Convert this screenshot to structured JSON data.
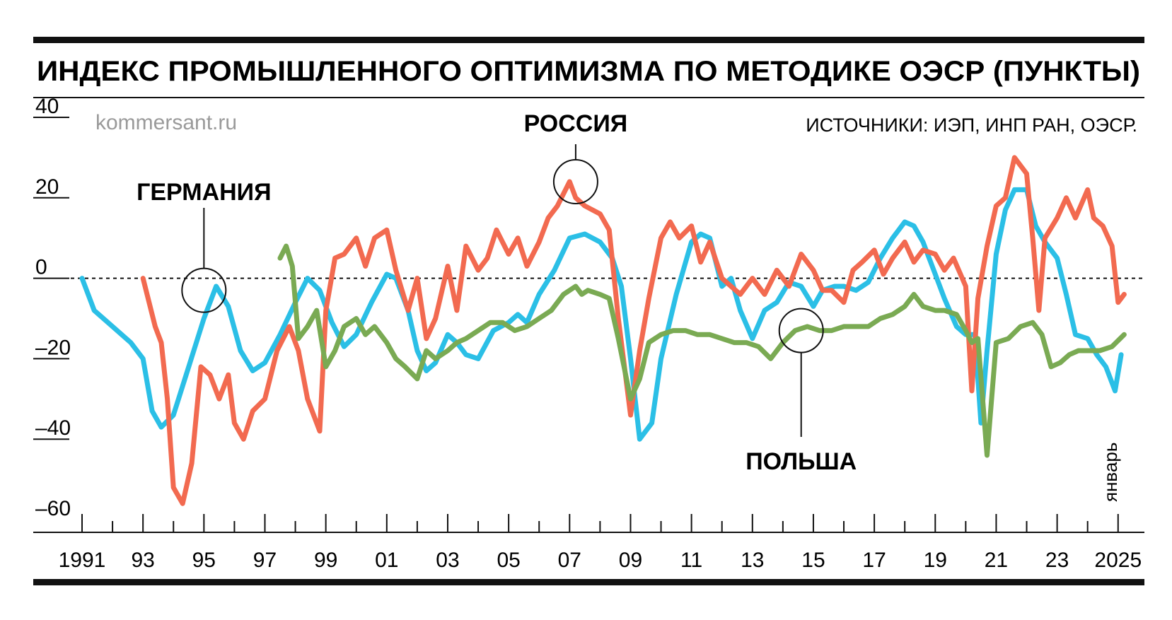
{
  "title": "ИНДЕКС ПРОМЫШЛЕННОГО ОПТИМИЗМА ПО МЕТОДИКЕ ОЭСР (ПУНКТЫ)",
  "credit": "kommersant.ru",
  "source": "ИСТОЧНИКИ: ИЭП, ИНП РАН, ОЭСР.",
  "note": "январь",
  "colors": {
    "germany": "#2bbfe6",
    "russia": "#f26a50",
    "poland": "#7aaa53",
    "ink": "#111111"
  },
  "chart_data": {
    "type": "line",
    "xlim": [
      1991,
      2025.4
    ],
    "ylim": [
      -60,
      40
    ],
    "y_ticks": [
      40,
      20,
      0,
      -20,
      -40,
      -60
    ],
    "y_tick_labels": [
      "40",
      "20",
      "0",
      "–20",
      "–40",
      "–60"
    ],
    "x_ticks": [
      1991,
      1993,
      1995,
      1997,
      1999,
      2001,
      2003,
      2005,
      2007,
      2009,
      2011,
      2013,
      2015,
      2017,
      2019,
      2021,
      2023,
      2025
    ],
    "x_tick_labels": [
      "1991",
      "93",
      "95",
      "97",
      "99",
      "01",
      "03",
      "05",
      "07",
      "09",
      "11",
      "13",
      "15",
      "17",
      "19",
      "21",
      "23",
      "2025"
    ],
    "series": [
      {
        "name": "ГЕРМАНИЯ",
        "key": "germany",
        "x": [
          1991.0,
          1991.4,
          1992.0,
          1992.6,
          1993.0,
          1993.3,
          1993.6,
          1994.0,
          1994.5,
          1995.0,
          1995.4,
          1995.8,
          1996.2,
          1996.6,
          1997.0,
          1997.5,
          1998.0,
          1998.4,
          1998.8,
          1999.2,
          1999.6,
          2000.0,
          2000.5,
          2001.0,
          2001.3,
          2001.7,
          2002.0,
          2002.3,
          2002.6,
          2003.0,
          2003.3,
          2003.6,
          2004.0,
          2004.5,
          2005.0,
          2005.3,
          2005.6,
          2006.0,
          2006.5,
          2007.0,
          2007.5,
          2008.0,
          2008.4,
          2008.7,
          2009.0,
          2009.3,
          2009.7,
          2010.0,
          2010.5,
          2011.0,
          2011.3,
          2011.6,
          2012.0,
          2012.3,
          2012.6,
          2013.0,
          2013.4,
          2013.8,
          2014.2,
          2014.6,
          2015.0,
          2015.3,
          2015.7,
          2016.0,
          2016.4,
          2016.8,
          2017.2,
          2017.6,
          2018.0,
          2018.3,
          2018.6,
          2019.0,
          2019.3,
          2019.7,
          2020.0,
          2020.3,
          2020.5,
          2020.7,
          2021.0,
          2021.3,
          2021.6,
          2022.0,
          2022.3,
          2022.6,
          2023.0,
          2023.3,
          2023.6,
          2024.0,
          2024.3,
          2024.6,
          2024.9,
          2025.1
        ],
        "y": [
          0,
          -8,
          -12,
          -16,
          -20,
          -33,
          -37,
          -34,
          -22,
          -10,
          -2,
          -7,
          -18,
          -23,
          -21,
          -14,
          -6,
          0,
          -3,
          -11,
          -17,
          -14,
          -6,
          1,
          0,
          -8,
          -18,
          -23,
          -21,
          -14,
          -16,
          -19,
          -20,
          -13,
          -11,
          -9,
          -11,
          -4,
          2,
          10,
          11,
          9,
          5,
          -2,
          -20,
          -40,
          -36,
          -20,
          -4,
          9,
          11,
          10,
          -2,
          0,
          -8,
          -15,
          -8,
          -6,
          -1,
          -2,
          -7,
          -3,
          -2,
          -2,
          -3,
          -1,
          5,
          10,
          14,
          13,
          9,
          1,
          -5,
          -12,
          -14,
          -14,
          -36,
          -18,
          6,
          17,
          22,
          22,
          13,
          9,
          5,
          -4,
          -14,
          -15,
          -19,
          -22,
          -28,
          -19
        ]
      },
      {
        "name": "РОССИЯ",
        "key": "russia",
        "x": [
          1993.0,
          1993.4,
          1993.6,
          1993.8,
          1994.0,
          1994.3,
          1994.6,
          1994.9,
          1995.2,
          1995.5,
          1995.8,
          1996.0,
          1996.3,
          1996.6,
          1997.0,
          1997.4,
          1997.8,
          1998.1,
          1998.4,
          1998.8,
          1999.0,
          1999.3,
          1999.6,
          2000.0,
          2000.3,
          2000.6,
          2001.0,
          2001.3,
          2001.7,
          2002.0,
          2002.3,
          2002.6,
          2003.0,
          2003.3,
          2003.6,
          2004.0,
          2004.3,
          2004.6,
          2005.0,
          2005.3,
          2005.6,
          2006.0,
          2006.3,
          2006.6,
          2007.0,
          2007.2,
          2007.5,
          2008.0,
          2008.3,
          2008.6,
          2009.0,
          2009.3,
          2009.6,
          2010.0,
          2010.3,
          2010.6,
          2011.0,
          2011.3,
          2011.6,
          2012.0,
          2012.3,
          2012.6,
          2013.0,
          2013.4,
          2013.8,
          2014.2,
          2014.6,
          2015.0,
          2015.3,
          2015.6,
          2016.0,
          2016.3,
          2016.6,
          2017.0,
          2017.3,
          2017.6,
          2018.0,
          2018.3,
          2018.6,
          2019.0,
          2019.3,
          2019.6,
          2020.0,
          2020.2,
          2020.4,
          2020.7,
          2021.0,
          2021.3,
          2021.6,
          2022.0,
          2022.2,
          2022.4,
          2022.6,
          2023.0,
          2023.3,
          2023.6,
          2024.0,
          2024.2,
          2024.5,
          2024.8,
          2025.0,
          2025.2
        ],
        "y": [
          0,
          -12,
          -16,
          -30,
          -52,
          -56,
          -46,
          -22,
          -24,
          -30,
          -24,
          -36,
          -40,
          -33,
          -30,
          -18,
          -12,
          -18,
          -30,
          -38,
          -8,
          5,
          6,
          10,
          3,
          10,
          12,
          2,
          -8,
          0,
          -15,
          -10,
          3,
          -8,
          8,
          2,
          5,
          12,
          6,
          10,
          3,
          9,
          15,
          18,
          24,
          20,
          18,
          16,
          12,
          -10,
          -34,
          -18,
          -5,
          10,
          14,
          10,
          13,
          4,
          9,
          0,
          -2,
          -4,
          0,
          -4,
          2,
          -2,
          6,
          2,
          -3,
          -3,
          -6,
          2,
          4,
          7,
          1,
          5,
          9,
          4,
          7,
          6,
          2,
          5,
          -2,
          -28,
          -5,
          8,
          18,
          20,
          30,
          26,
          10,
          -8,
          10,
          15,
          20,
          15,
          22,
          15,
          13,
          8,
          -6,
          -4
        ]
      },
      {
        "name": "ПОЛЬША",
        "key": "poland",
        "x": [
          1997.5,
          1997.7,
          1997.9,
          1998.1,
          1998.4,
          1998.7,
          1999.0,
          1999.3,
          1999.6,
          2000.0,
          2000.3,
          2000.6,
          2001.0,
          2001.3,
          2001.6,
          2002.0,
          2002.3,
          2002.6,
          2003.0,
          2003.3,
          2003.6,
          2004.0,
          2004.4,
          2004.8,
          2005.2,
          2005.6,
          2006.0,
          2006.4,
          2006.8,
          2007.0,
          2007.2,
          2007.4,
          2007.6,
          2008.0,
          2008.3,
          2008.6,
          2009.0,
          2009.3,
          2009.6,
          2010.0,
          2010.4,
          2010.8,
          2011.2,
          2011.6,
          2012.0,
          2012.4,
          2012.8,
          2013.2,
          2013.6,
          2014.0,
          2014.4,
          2014.8,
          2015.2,
          2015.6,
          2016.0,
          2016.4,
          2016.8,
          2017.2,
          2017.6,
          2018.0,
          2018.3,
          2018.6,
          2019.0,
          2019.3,
          2019.7,
          2020.0,
          2020.2,
          2020.4,
          2020.7,
          2021.0,
          2021.4,
          2021.8,
          2022.2,
          2022.5,
          2022.8,
          2023.1,
          2023.4,
          2023.7,
          2024.0,
          2024.4,
          2024.8,
          2025.2
        ],
        "y": [
          5,
          8,
          3,
          -15,
          -12,
          -8,
          -22,
          -18,
          -12,
          -10,
          -14,
          -12,
          -16,
          -20,
          -22,
          -25,
          -18,
          -20,
          -18,
          -16,
          -15,
          -13,
          -11,
          -11,
          -13,
          -12,
          -10,
          -8,
          -4,
          -3,
          -2,
          -4,
          -3,
          -4,
          -5,
          -15,
          -30,
          -25,
          -16,
          -14,
          -13,
          -13,
          -14,
          -14,
          -15,
          -16,
          -16,
          -17,
          -20,
          -16,
          -13,
          -12,
          -13,
          -13,
          -12,
          -12,
          -12,
          -10,
          -9,
          -7,
          -4,
          -7,
          -8,
          -8,
          -9,
          -13,
          -16,
          -15,
          -44,
          -16,
          -15,
          -12,
          -11,
          -14,
          -22,
          -21,
          -19,
          -18,
          -18,
          -18,
          -17,
          -14
        ]
      }
    ],
    "annotations": [
      {
        "label": "ГЕРМАНИЯ",
        "series": "germany",
        "x": 1995.0,
        "y": -3
      },
      {
        "label": "РОССИЯ",
        "series": "russia",
        "x": 2007.2,
        "y": 24
      },
      {
        "label": "ПОЛЬША",
        "series": "poland",
        "x": 2014.6,
        "y": -13
      }
    ]
  }
}
